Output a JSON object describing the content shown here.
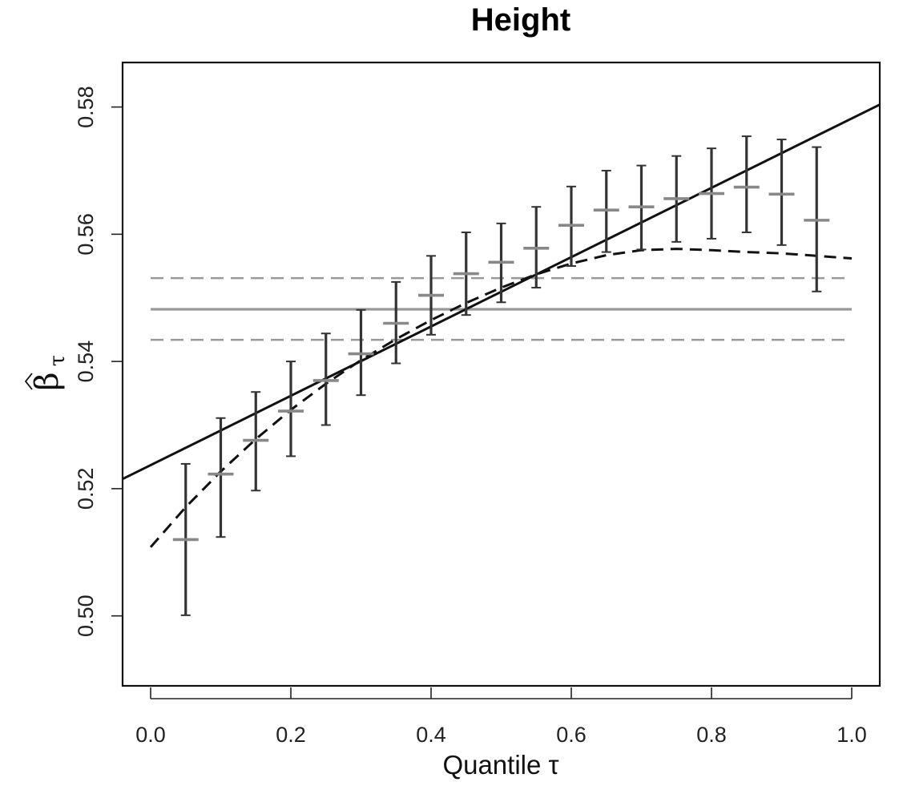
{
  "chart_data": {
    "type": "line",
    "title": "Height",
    "xlabel": "Quantile τ",
    "ylabel_symbol": "β",
    "ylabel_subscript": "τ",
    "xlim": [
      -0.04,
      1.04
    ],
    "ylim": [
      0.489,
      0.587
    ],
    "x_ticks": [
      0.0,
      0.2,
      0.4,
      0.6,
      0.8,
      1.0
    ],
    "x_tick_labels": [
      "0.0",
      "0.2",
      "0.4",
      "0.6",
      "0.8",
      "1.0"
    ],
    "y_ticks": [
      0.5,
      0.52,
      0.54,
      0.56,
      0.58
    ],
    "y_tick_labels": [
      "0.50",
      "0.52",
      "0.54",
      "0.56",
      "0.58"
    ],
    "grid": false,
    "quantile_estimates": {
      "color": "#888888",
      "tau": [
        0.05,
        0.1,
        0.15,
        0.2,
        0.25,
        0.3,
        0.35,
        0.4,
        0.45,
        0.5,
        0.55,
        0.6,
        0.65,
        0.7,
        0.75,
        0.8,
        0.85,
        0.9,
        0.95
      ],
      "value": [
        0.512,
        0.5223,
        0.5276,
        0.5322,
        0.537,
        0.5412,
        0.546,
        0.5504,
        0.5538,
        0.5556,
        0.5578,
        0.5614,
        0.5638,
        0.5643,
        0.5656,
        0.5664,
        0.5674,
        0.5663,
        0.5622
      ],
      "lower": [
        0.5001,
        0.5124,
        0.5197,
        0.5251,
        0.53,
        0.5347,
        0.5397,
        0.5442,
        0.5473,
        0.5493,
        0.5516,
        0.555,
        0.5572,
        0.5576,
        0.5588,
        0.5593,
        0.5603,
        0.5583,
        0.551
      ],
      "upper": [
        0.5239,
        0.5311,
        0.5352,
        0.54,
        0.5444,
        0.5481,
        0.5525,
        0.5566,
        0.5603,
        0.5617,
        0.5643,
        0.5675,
        0.57,
        0.5708,
        0.5723,
        0.5735,
        0.5754,
        0.5749,
        0.5737
      ]
    },
    "ci_color": "#333333",
    "linear_fit": {
      "intercept": 0.5237,
      "slope": 0.0545,
      "color": "#111111"
    },
    "quadratic_fit": {
      "color": "#111111",
      "tau": [
        0.0,
        0.05,
        0.1,
        0.15,
        0.2,
        0.25,
        0.3,
        0.35,
        0.4,
        0.45,
        0.5,
        0.55,
        0.6,
        0.65,
        0.7,
        0.75,
        0.8,
        0.85,
        0.9,
        0.95,
        1.0
      ],
      "value": [
        0.5108,
        0.5171,
        0.5227,
        0.5278,
        0.5324,
        0.5365,
        0.5402,
        0.5435,
        0.5465,
        0.5492,
        0.5516,
        0.5537,
        0.5554,
        0.5567,
        0.5575,
        0.5577,
        0.5575,
        0.5572,
        0.557,
        0.5566,
        0.5562
      ]
    },
    "ols_estimate": {
      "value": 0.5482,
      "lower": 0.5434,
      "upper": 0.5531,
      "color": "#999999"
    }
  }
}
